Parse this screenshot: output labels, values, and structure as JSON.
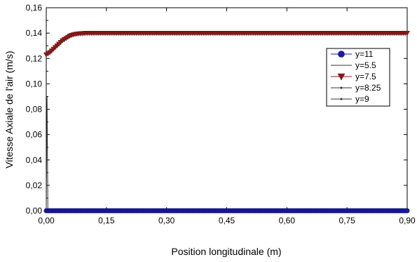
{
  "chart_data": {
    "type": "line",
    "xlabel": "Position longitudinale (m)",
    "ylabel": "Vitesse Axiale de l'air (m/s)",
    "xlim": [
      0,
      0.9
    ],
    "ylim": [
      0,
      0.16
    ],
    "xticks": [
      "0,00",
      "0,15",
      "0,30",
      "0,45",
      "0,60",
      "0,75",
      "0,90"
    ],
    "yticks": [
      "0,00",
      "0,02",
      "0,04",
      "0,06",
      "0,08",
      "0,10",
      "0,12",
      "0,14",
      "0,16"
    ],
    "grid": false,
    "legend_position": "right",
    "series": [
      {
        "name": "y=11",
        "color": "#1a1aa6",
        "marker": "circle",
        "x": [
          0,
          0.9
        ],
        "y": [
          0,
          0
        ]
      },
      {
        "name": "y=5.5",
        "color": "#333333",
        "marker": "none",
        "x": [
          0,
          0.002,
          0.004,
          0.006,
          0.9
        ],
        "y": [
          0,
          0.09,
          0.001,
          0,
          0
        ]
      },
      {
        "name": "y=7.5",
        "color": "#8b1a1a",
        "marker": "triangle-down",
        "x": [
          0,
          0.01,
          0.02,
          0.03,
          0.04,
          0.05,
          0.06,
          0.07,
          0.08,
          0.1,
          0.12,
          0.15,
          0.9
        ],
        "y": [
          0.123,
          0.125,
          0.128,
          0.131,
          0.134,
          0.136,
          0.138,
          0.139,
          0.1395,
          0.14,
          0.14,
          0.14,
          0.14
        ]
      },
      {
        "name": "y=8.25",
        "color": "#333333",
        "marker": "dot",
        "x": [
          0,
          0.9
        ],
        "y": [
          0,
          0
        ]
      },
      {
        "name": "y=9",
        "color": "#333333",
        "marker": "dot",
        "x": [
          0,
          0.9
        ],
        "y": [
          0,
          0
        ]
      }
    ]
  }
}
